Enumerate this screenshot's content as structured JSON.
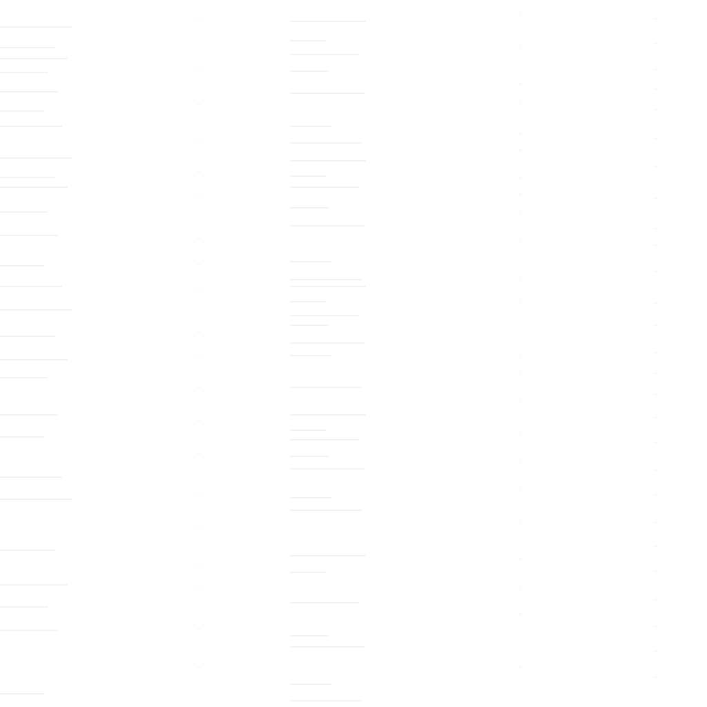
{
  "page": {
    "background_color": "#ffffff",
    "trace_color": "#f3f3f3",
    "faint_color": "#f8f8f8"
  }
}
